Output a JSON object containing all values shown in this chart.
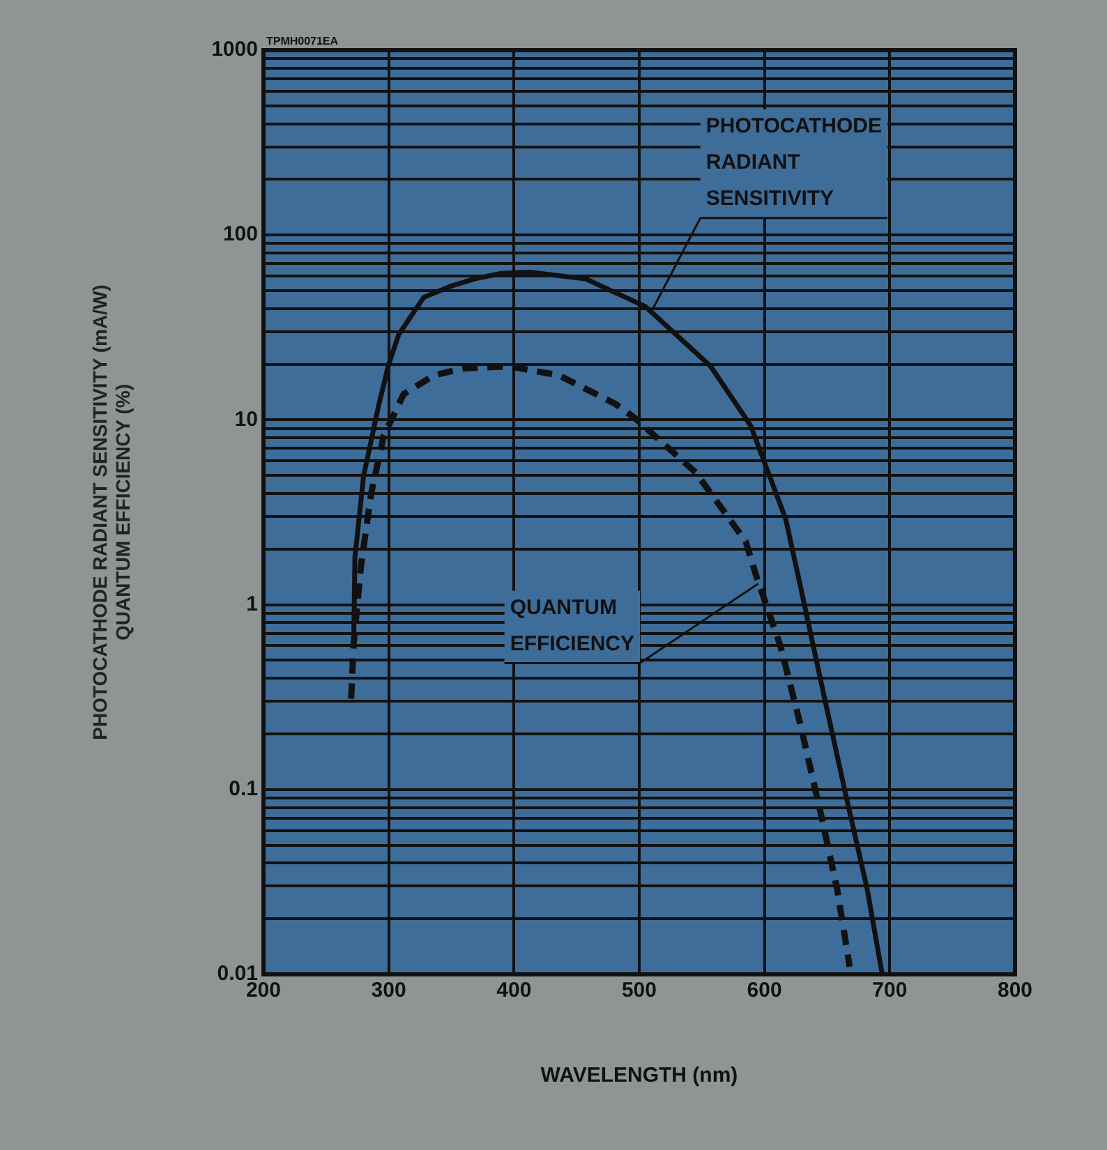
{
  "chart_data": {
    "type": "line",
    "xlabel": "WAVELENGTH (nm)",
    "ylabel": "PHOTOCATHODE RADIANT SENSITIVITY (mA/W)\nQUANTUM EFFICIENCY (%)",
    "annotations": [
      "TPMH0071EA",
      {
        "text": "PHOTOCATHODE RADIANT SENSITIVITY",
        "x": 511,
        "y": 40
      },
      {
        "text": "QUANTUM EFFICIENCY",
        "x": 595,
        "y": 1.3
      }
    ],
    "series": [
      {
        "color": "#111111",
        "line_style": "solid",
        "x": [
          272,
          273,
          280,
          292,
          300,
          308,
          328,
          350,
          369,
          390,
          412,
          457,
          505,
          557,
          589,
          617,
          629,
          649,
          665,
          682,
          694
        ],
        "values": [
          0.6,
          1.8,
          5,
          12,
          20,
          29,
          46,
          53,
          58,
          62,
          63,
          58,
          41,
          19.5,
          9.3,
          2.9,
          1.23,
          0.29,
          0.093,
          0.029,
          0.01
        ]
      },
      {
        "color": "#111111",
        "line_style": "dashed",
        "x": [
          270,
          272,
          278,
          286,
          296,
          312,
          336,
          360,
          396,
          436,
          481,
          496,
          545,
          585,
          593,
          613,
          629,
          646,
          658,
          668
        ],
        "values": [
          0.31,
          0.62,
          1.65,
          4,
          8.2,
          13.8,
          17.4,
          19,
          19.5,
          17.4,
          12.2,
          10.3,
          5.2,
          2.2,
          1.46,
          0.59,
          0.22,
          0.069,
          0.029,
          0.011
        ]
      }
    ],
    "xlim": [
      200,
      800
    ],
    "xticks": [
      200,
      300,
      400,
      500,
      600,
      700,
      800
    ],
    "ylim": [
      0.01,
      1000
    ],
    "yticks": [
      0.01,
      {
        "value": 0.02,
        "label": null
      },
      {
        "value": 0.03,
        "label": null
      },
      {
        "value": 0.04,
        "label": null
      },
      {
        "value": 0.05,
        "label": null
      },
      {
        "value": 0.06,
        "label": null
      },
      {
        "value": 0.07,
        "label": null
      },
      {
        "value": 0.08,
        "label": null
      },
      {
        "value": 0.09,
        "label": null
      },
      0.1,
      {
        "value": 0.2,
        "label": null
      },
      {
        "value": 0.3,
        "label": null
      },
      {
        "value": 0.4,
        "label": null
      },
      {
        "value": 0.5,
        "label": null
      },
      {
        "value": 0.6,
        "label": null
      },
      {
        "value": 0.7,
        "label": null
      },
      {
        "value": 0.8,
        "label": null
      },
      {
        "value": 0.9,
        "label": null
      },
      1,
      {
        "value": 2,
        "label": null
      },
      {
        "value": 3,
        "label": null
      },
      {
        "value": 4,
        "label": null
      },
      {
        "value": 5,
        "label": null
      },
      {
        "value": 6,
        "label": null
      },
      {
        "value": 7,
        "label": null
      },
      {
        "value": 8,
        "label": null
      },
      {
        "value": 9,
        "label": null
      },
      10,
      {
        "value": 20,
        "label": null
      },
      {
        "value": 30,
        "label": null
      },
      {
        "value": 40,
        "label": null
      },
      {
        "value": 50,
        "label": null
      },
      {
        "value": 60,
        "label": null
      },
      {
        "value": 70,
        "label": null
      },
      {
        "value": 80,
        "label": null
      },
      {
        "value": 90,
        "label": null
      },
      100,
      {
        "value": 200,
        "label": null
      },
      {
        "value": 300,
        "label": null
      },
      {
        "value": 400,
        "label": null
      },
      {
        "value": 500,
        "label": null
      },
      {
        "value": 600,
        "label": null
      },
      {
        "value": 700,
        "label": null
      },
      {
        "value": 800,
        "label": null
      },
      {
        "value": 900,
        "label": null
      },
      1000
    ],
    "log": "y",
    "grid": true,
    "legend": false
  }
}
